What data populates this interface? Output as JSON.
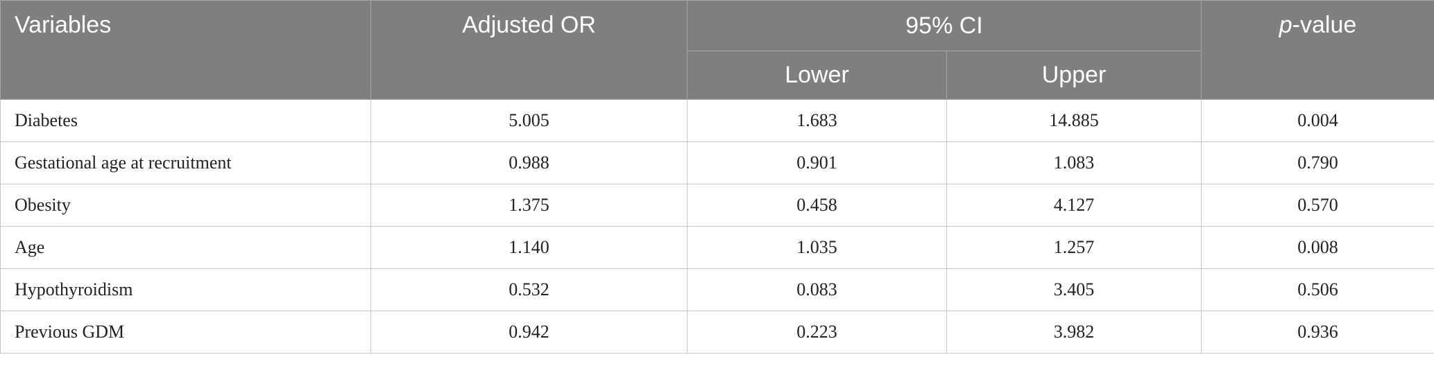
{
  "table": {
    "header": {
      "variables": "Variables",
      "adjusted_or": "Adjusted OR",
      "ci": "95% CI",
      "lower": "Lower",
      "upper": "Upper",
      "pvalue": {
        "italic": "p",
        "rest": "-value"
      }
    },
    "rows": [
      [
        "Diabetes",
        "5.005",
        "1.683",
        "14.885",
        "0.004"
      ],
      [
        "Gestational age at recruitment",
        "0.988",
        "0.901",
        "1.083",
        "0.790"
      ],
      [
        "Obesity",
        "1.375",
        "0.458",
        "4.127",
        "0.570"
      ],
      [
        "Age",
        "1.140",
        "1.035",
        "1.257",
        "0.008"
      ],
      [
        "Hypothyroidism",
        "0.532",
        "0.083",
        "3.405",
        "0.506"
      ],
      [
        "Previous GDM",
        "0.942",
        "0.223",
        "3.982",
        "0.936"
      ]
    ]
  }
}
